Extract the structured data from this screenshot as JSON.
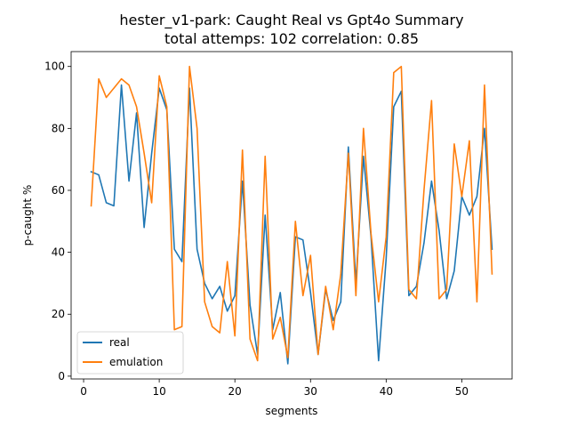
{
  "chart_data": {
    "type": "line",
    "title": "hester_v1-park: Caught Real vs Gpt4o Summary",
    "subtitle": "total attemps: 102 correlation: 0.85",
    "xlabel": "segments",
    "ylabel": "p-caught %",
    "xlim": [
      -1.65,
      56.65
    ],
    "ylim": [
      -0.9,
      104.8
    ],
    "xticks": [
      0,
      10,
      20,
      30,
      40,
      50
    ],
    "yticks": [
      0,
      20,
      40,
      60,
      80,
      100
    ],
    "grid": false,
    "legend_position": "lower-left",
    "x": [
      1,
      2,
      3,
      4,
      5,
      6,
      7,
      8,
      9,
      10,
      11,
      12,
      13,
      14,
      15,
      16,
      17,
      18,
      19,
      20,
      21,
      22,
      23,
      24,
      25,
      26,
      27,
      28,
      29,
      30,
      31,
      32,
      33,
      34,
      35,
      36,
      37,
      38,
      39,
      40,
      41,
      42,
      43,
      44,
      45,
      46,
      47,
      48,
      49,
      50,
      51,
      52,
      53,
      54
    ],
    "series": [
      {
        "name": "real",
        "color": "#1f77b4",
        "values": [
          66,
          65,
          56,
          55,
          94,
          63,
          85,
          48,
          72,
          93,
          86,
          41,
          37,
          93,
          41,
          30,
          25,
          29,
          21,
          26,
          63,
          23,
          7,
          52,
          15,
          27,
          4,
          45,
          44,
          27,
          7,
          28,
          18,
          24,
          74,
          30,
          71,
          45,
          5,
          38,
          87,
          92,
          26,
          29,
          43,
          63,
          47,
          25,
          34,
          58,
          52,
          58,
          80,
          41
        ]
      },
      {
        "name": "emulation",
        "color": "#ff7f0e",
        "values": [
          55,
          96,
          90,
          93,
          96,
          94,
          87,
          72,
          56,
          97,
          87,
          15,
          16,
          100,
          80,
          24,
          16,
          14,
          37,
          13,
          73,
          12,
          5,
          71,
          12,
          19,
          6,
          50,
          26,
          39,
          7,
          29,
          15,
          33,
          72,
          26,
          80,
          46,
          24,
          45,
          98,
          100,
          28,
          25,
          60,
          89,
          25,
          28,
          75,
          58,
          76,
          24,
          94,
          33
        ]
      }
    ]
  }
}
